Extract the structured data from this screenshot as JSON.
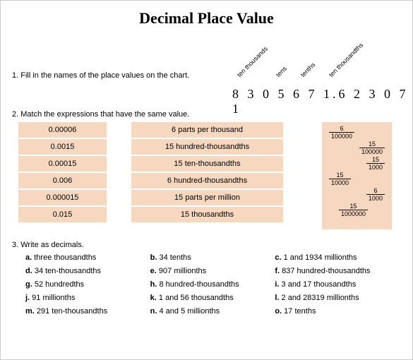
{
  "title": "Decimal Place Value",
  "q1": "1. Fill in the names of the place values on the chart.",
  "labels": {
    "tt": "ten thousands",
    "te": "tens",
    "tn": "tenths",
    "tth": "ten thousandths"
  },
  "digits": "8 3 0 5 6 7 1.6 2 3 0 7 1",
  "q2": "2. Match the expressions that have the same value.",
  "colA": [
    "0.00006",
    "0.0015",
    "0.00015",
    "0.006",
    "0.000015",
    "0.015"
  ],
  "colB": [
    "6 parts per thousand",
    "15 hundred-thousandths",
    "15 ten-thousandths",
    "6 hundred-thousandths",
    "15 parts per million",
    "15 thousandths"
  ],
  "colC": [
    {
      "n": "6",
      "d": "100000",
      "pos": "l"
    },
    {
      "n": "15",
      "d": "100000",
      "pos": "r"
    },
    {
      "n": "15",
      "d": "1000",
      "pos": "r"
    },
    {
      "n": "15",
      "d": "10000",
      "pos": "l"
    },
    {
      "n": "6",
      "d": "1000",
      "pos": "r"
    },
    {
      "n": "15",
      "d": "1000000",
      "pos": "c"
    }
  ],
  "q3": "3. Write as decimals.",
  "grid": [
    [
      {
        "k": "a.",
        "t": "three thousandths"
      },
      {
        "k": "b.",
        "t": "34 tenths"
      },
      {
        "k": "c.",
        "t": "1 and 1934 millionths"
      }
    ],
    [
      {
        "k": "d.",
        "t": "34 ten-thousandths"
      },
      {
        "k": "e.",
        "t": "907 millionths"
      },
      {
        "k": "f.",
        "t": "837 hundred-thousandths"
      }
    ],
    [
      {
        "k": "g.",
        "t": "52 hundredths"
      },
      {
        "k": "h.",
        "t": "8 hundred-thousandths"
      },
      {
        "k": "i.",
        "t": "3 and 17 thousandths"
      }
    ],
    [
      {
        "k": "j.",
        "t": "91 millionths"
      },
      {
        "k": "k.",
        "t": "1 and 56 thousandths"
      },
      {
        "k": "l.",
        "t": "2 and 28319 millionths"
      }
    ],
    [
      {
        "k": "m.",
        "t": "291 ten-thousandths"
      },
      {
        "k": "n.",
        "t": "4 and 5 millionths"
      },
      {
        "k": "o.",
        "t": "17 tenths"
      }
    ]
  ]
}
